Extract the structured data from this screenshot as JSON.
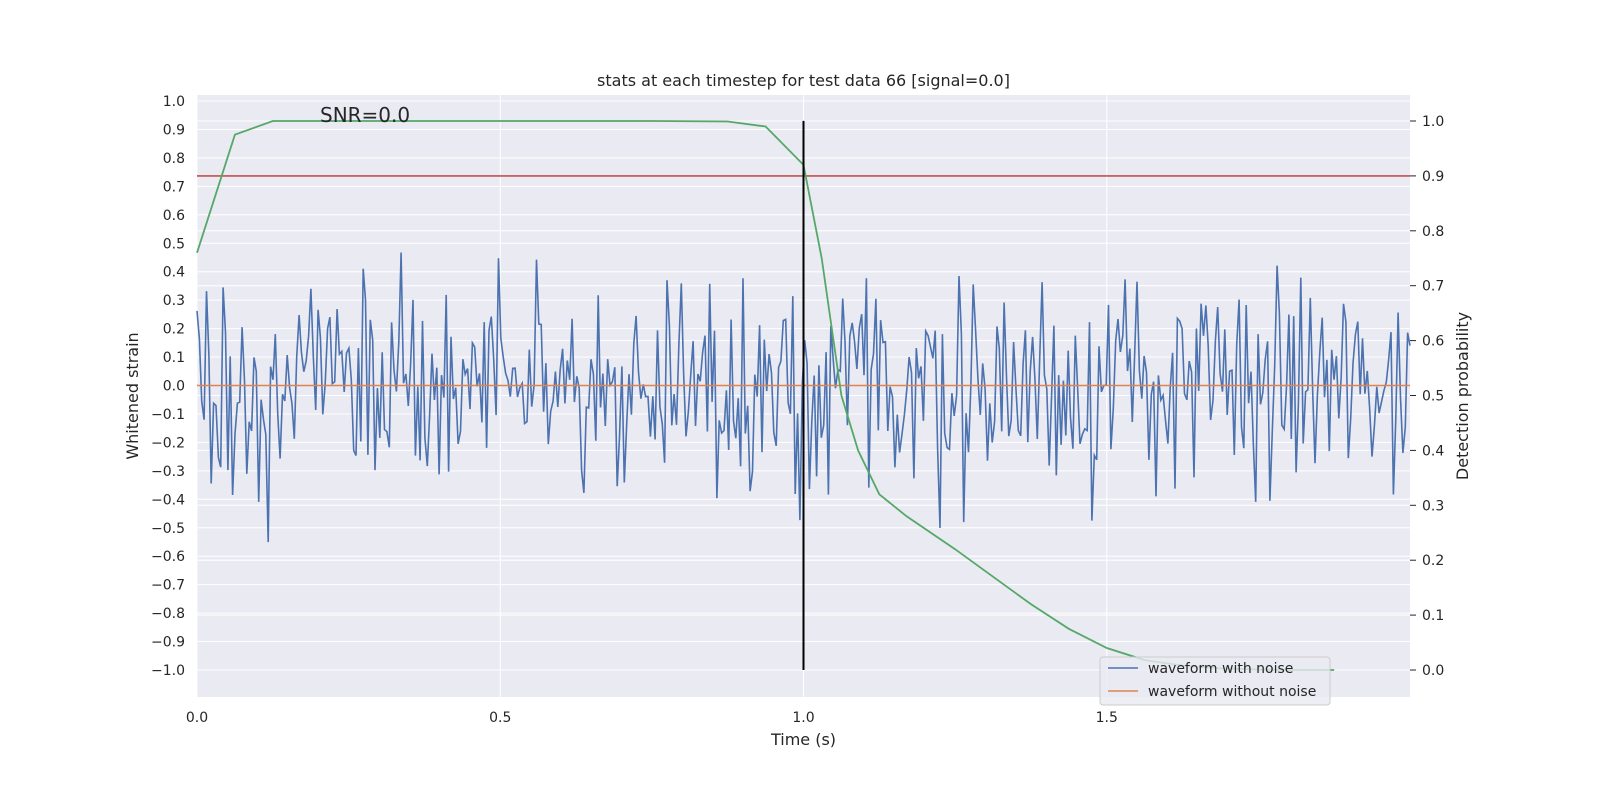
{
  "chart_data": {
    "type": "line",
    "title": "stats at each timestep for test data 66 [signal=0.0]",
    "xlabel": "Time (s)",
    "ylabel": "Whitened strain",
    "y2label": "Detection probability",
    "annotation": "SNR=0.0",
    "xlim": [
      0.0,
      2.0
    ],
    "ylim": [
      -1.0,
      1.0
    ],
    "y2lim": [
      0.0,
      1.0
    ],
    "x_ticks": [
      "0.0",
      "0.5",
      "1.0",
      "1.5"
    ],
    "y_ticks": [
      "1.0",
      "0.9",
      "0.8",
      "0.7",
      "0.6",
      "0.5",
      "0.4",
      "0.3",
      "0.2",
      "0.1",
      "0.0",
      "−0.1",
      "−0.2",
      "−0.3",
      "−0.4",
      "−0.5",
      "−0.6",
      "−0.7",
      "−0.8",
      "−0.9",
      "−1.0"
    ],
    "y2_ticks": [
      "1.0",
      "0.9",
      "0.8",
      "0.7",
      "0.6",
      "0.5",
      "0.4",
      "0.3",
      "0.2",
      "0.1",
      "0.0"
    ],
    "grid": true,
    "legend_placement": "lower-right",
    "series": [
      {
        "name": "waveform with noise",
        "color": "#4c72b0",
        "axis": "left",
        "x_range": [
          0.0,
          2.0
        ],
        "sample_count": 512,
        "noise_amplitude": 0.25,
        "values_note": "dense random noise spanning roughly -1.0 to 0.93 whitened strain"
      },
      {
        "name": "waveform without noise",
        "color": "#dd8452",
        "axis": "left",
        "x": [
          0.0,
          2.0
        ],
        "values": [
          0.0,
          0.0
        ]
      },
      {
        "color": "#55a868",
        "axis": "right",
        "x": [
          0.0,
          0.0625,
          0.125,
          0.1875,
          0.25,
          0.5,
          0.75,
          0.875,
          0.9375,
          1.0,
          1.03,
          1.0625,
          1.09,
          1.125,
          1.17,
          1.25,
          1.3125,
          1.375,
          1.4375,
          1.5,
          1.5625,
          1.625,
          1.6875,
          1.75,
          1.8125,
          1.875
        ],
        "values": [
          0.76,
          0.975,
          1.0,
          1.0,
          1.0,
          1.0,
          1.0,
          0.999,
          0.99,
          0.92,
          0.75,
          0.5,
          0.4,
          0.32,
          0.28,
          0.22,
          0.17,
          0.12,
          0.075,
          0.04,
          0.018,
          0.008,
          0.003,
          0.001,
          0.0,
          0.0
        ]
      },
      {
        "color": "#c44e52",
        "axis": "right",
        "type": "hline",
        "value": 0.9
      },
      {
        "color": "#000000",
        "axis": "left",
        "type": "vline",
        "x": 1.0,
        "y_range": [
          -1.0,
          0.93
        ]
      }
    ]
  },
  "colors": {
    "plot_background": "#eaeaf2",
    "grid": "#ffffff",
    "text": "#262626"
  }
}
